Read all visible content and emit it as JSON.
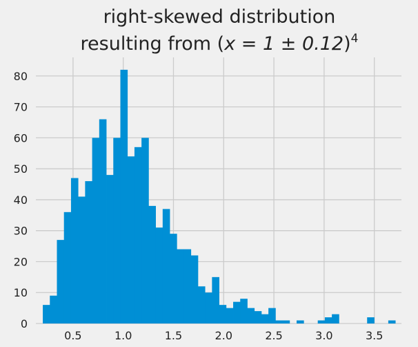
{
  "chart_data": {
    "type": "bar",
    "title_line1": "right-skewed distribution",
    "title_line2_prefix": "resulting from (",
    "title_line2_math": "x = 1 ± 0.12",
    "title_line2_suffix": ")",
    "title_line2_exponent": "4",
    "xlabel": "",
    "ylabel": "",
    "xlim": [
      0.13,
      3.77
    ],
    "ylim": [
      0,
      86
    ],
    "xticks": [
      0.5,
      1.0,
      1.5,
      2.0,
      2.5,
      3.0,
      3.5
    ],
    "xtick_labels": [
      "0.5",
      "1.0",
      "1.5",
      "2.0",
      "2.5",
      "3.0",
      "3.5"
    ],
    "yticks": [
      0,
      10,
      20,
      30,
      40,
      50,
      60,
      70,
      80
    ],
    "ytick_labels": [
      "0",
      "10",
      "20",
      "30",
      "40",
      "50",
      "60",
      "70",
      "80"
    ],
    "grid": true,
    "color": "#008fd5",
    "bin_start": 0.199,
    "bin_width": 0.0702,
    "counts": [
      6,
      9,
      27,
      36,
      47,
      41,
      46,
      60,
      66,
      48,
      60,
      82,
      54,
      57,
      60,
      38,
      31,
      37,
      29,
      24,
      24,
      22,
      12,
      10,
      15,
      6,
      5,
      7,
      8,
      5,
      4,
      3,
      5,
      1,
      1,
      0,
      1,
      0,
      0,
      1,
      2,
      3,
      0,
      0,
      0,
      0,
      2,
      0,
      0,
      1
    ]
  }
}
